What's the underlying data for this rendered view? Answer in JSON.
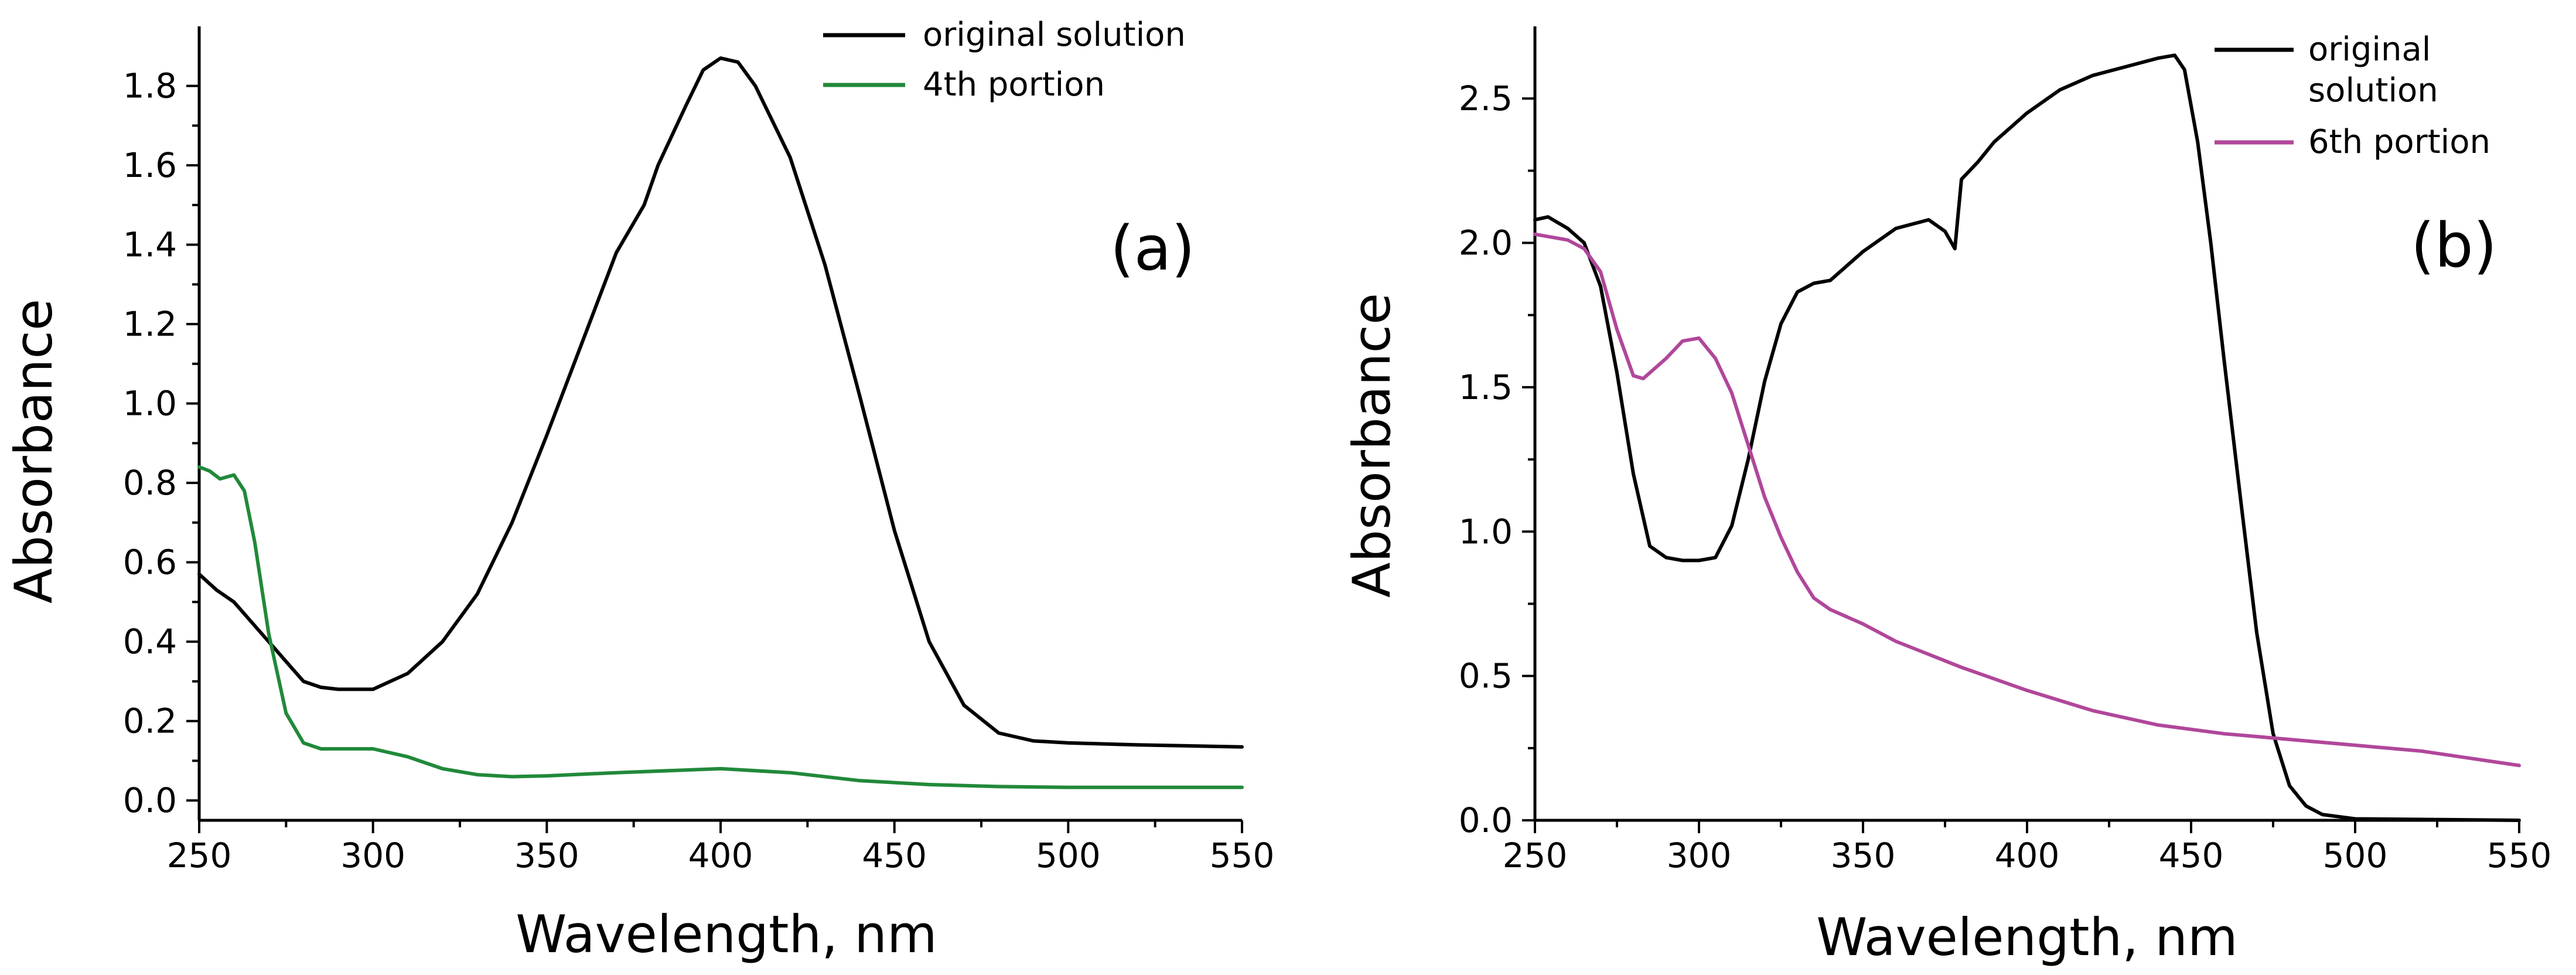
{
  "chart_data": [
    {
      "type": "line",
      "panel_label": "(a)",
      "title": "",
      "xlabel": "Wavelength, nm",
      "ylabel": "Absorbance",
      "xlim": [
        250,
        550
      ],
      "ylim": [
        -0.05,
        1.95
      ],
      "xticks": [
        250,
        300,
        350,
        400,
        450,
        500,
        550
      ],
      "yticks": [
        0.0,
        0.2,
        0.4,
        0.6,
        0.8,
        1.0,
        1.2,
        1.4,
        1.6,
        1.8
      ],
      "ytick_labels": [
        "0.0",
        "0.2",
        "0.4",
        "0.6",
        "0.8",
        "1.0",
        "1.2",
        "1.4",
        "1.6",
        "1.8"
      ],
      "grid": false,
      "legend_position": "top-right",
      "series": [
        {
          "name": "original solution",
          "color": "#000000",
          "x": [
            250,
            255,
            260,
            265,
            270,
            275,
            280,
            285,
            290,
            300,
            310,
            320,
            330,
            340,
            350,
            360,
            370,
            378,
            382,
            390,
            395,
            400,
            405,
            410,
            420,
            430,
            440,
            450,
            460,
            470,
            480,
            490,
            500,
            520,
            550
          ],
          "y": [
            0.57,
            0.53,
            0.5,
            0.45,
            0.4,
            0.35,
            0.3,
            0.285,
            0.28,
            0.28,
            0.32,
            0.4,
            0.52,
            0.7,
            0.92,
            1.15,
            1.38,
            1.5,
            1.6,
            1.75,
            1.84,
            1.87,
            1.86,
            1.8,
            1.62,
            1.35,
            1.02,
            0.68,
            0.4,
            0.24,
            0.17,
            0.15,
            0.145,
            0.14,
            0.135
          ]
        },
        {
          "name": "4th portion",
          "color": "#21893A",
          "x": [
            250,
            253,
            256,
            260,
            263,
            266,
            270,
            275,
            280,
            285,
            290,
            300,
            310,
            320,
            330,
            340,
            350,
            370,
            400,
            420,
            440,
            460,
            480,
            500,
            520,
            550
          ],
          "y": [
            0.84,
            0.83,
            0.81,
            0.82,
            0.78,
            0.65,
            0.42,
            0.22,
            0.145,
            0.13,
            0.13,
            0.13,
            0.11,
            0.08,
            0.065,
            0.06,
            0.062,
            0.07,
            0.08,
            0.07,
            0.05,
            0.04,
            0.035,
            0.033,
            0.033,
            0.033
          ]
        }
      ]
    },
    {
      "type": "line",
      "panel_label": "(b)",
      "title": "",
      "xlabel": "Wavelength, nm",
      "ylabel": "Absorbance",
      "xlim": [
        250,
        550
      ],
      "ylim": [
        0,
        2.75
      ],
      "xticks": [
        250,
        300,
        350,
        400,
        450,
        500,
        550
      ],
      "yticks": [
        0.0,
        0.5,
        1.0,
        1.5,
        2.0,
        2.5
      ],
      "ytick_labels": [
        "0.0",
        "0.5",
        "1.0",
        "1.5",
        "2.0",
        "2.5"
      ],
      "grid": false,
      "legend_position": "top-right",
      "series": [
        {
          "name": "original solution",
          "legend_lines": [
            "original",
            "solution"
          ],
          "color": "#000000",
          "x": [
            250,
            254,
            260,
            265,
            270,
            275,
            280,
            285,
            290,
            295,
            300,
            305,
            310,
            315,
            320,
            325,
            330,
            335,
            340,
            345,
            350,
            360,
            370,
            375,
            378,
            380,
            385,
            390,
            400,
            410,
            420,
            430,
            440,
            445,
            448,
            452,
            456,
            460,
            465,
            470,
            475,
            480,
            485,
            490,
            500,
            550
          ],
          "y": [
            2.08,
            2.09,
            2.05,
            2.0,
            1.85,
            1.55,
            1.2,
            0.95,
            0.91,
            0.9,
            0.9,
            0.91,
            1.02,
            1.25,
            1.52,
            1.72,
            1.83,
            1.86,
            1.87,
            1.92,
            1.97,
            2.05,
            2.08,
            2.04,
            1.98,
            2.22,
            2.28,
            2.35,
            2.45,
            2.53,
            2.58,
            2.61,
            2.64,
            2.65,
            2.6,
            2.35,
            2.0,
            1.6,
            1.12,
            0.65,
            0.3,
            0.12,
            0.05,
            0.02,
            0.005,
            0.0
          ]
        },
        {
          "name": "6th portion",
          "legend_lines": [
            "6th portion"
          ],
          "color": "#B0479A",
          "x": [
            250,
            255,
            260,
            265,
            270,
            275,
            280,
            283,
            290,
            295,
            300,
            305,
            310,
            315,
            320,
            325,
            330,
            335,
            340,
            350,
            360,
            380,
            400,
            420,
            440,
            460,
            480,
            500,
            520,
            550
          ],
          "y": [
            2.03,
            2.02,
            2.01,
            1.98,
            1.9,
            1.7,
            1.54,
            1.53,
            1.6,
            1.66,
            1.67,
            1.6,
            1.48,
            1.3,
            1.12,
            0.98,
            0.86,
            0.77,
            0.73,
            0.68,
            0.62,
            0.53,
            0.45,
            0.38,
            0.33,
            0.3,
            0.28,
            0.26,
            0.24,
            0.19
          ]
        }
      ]
    }
  ]
}
